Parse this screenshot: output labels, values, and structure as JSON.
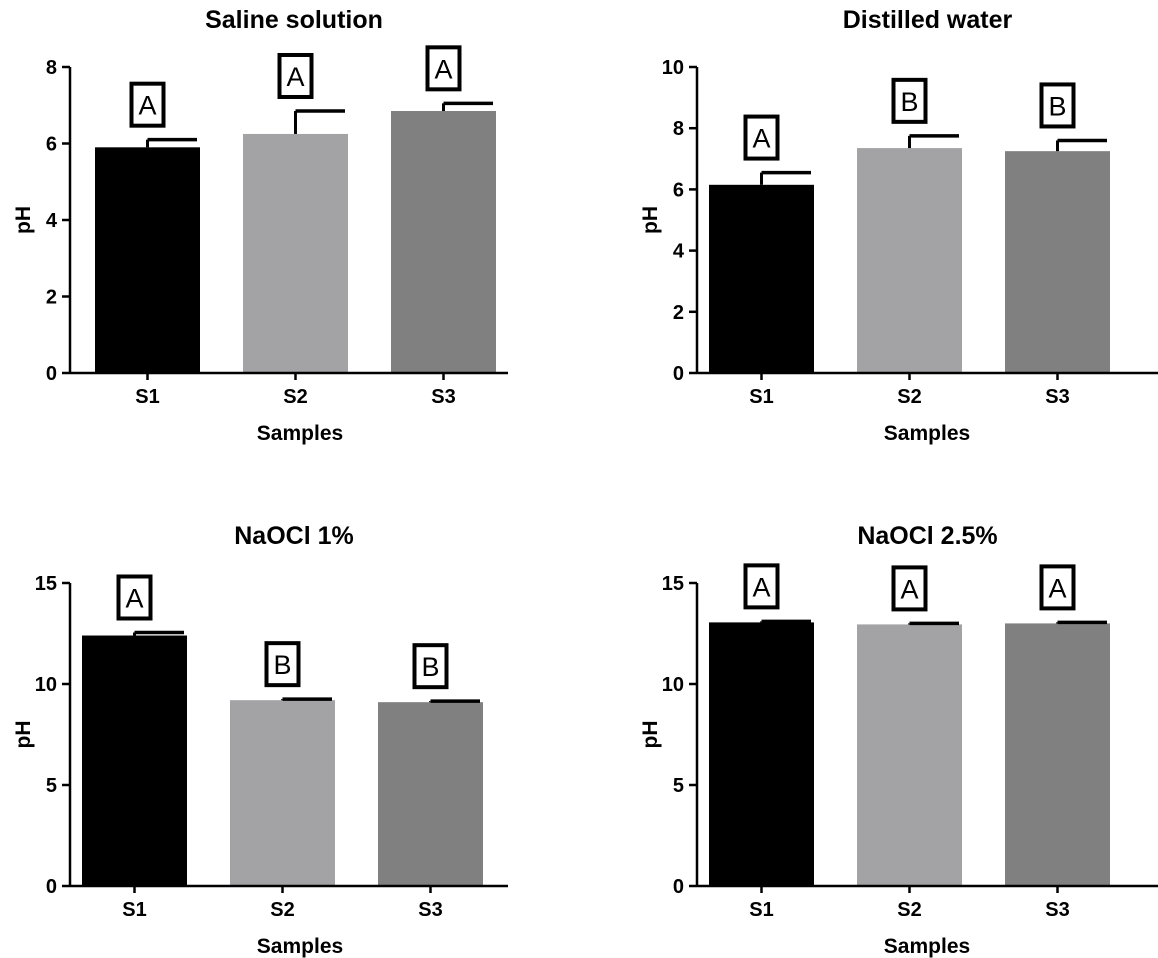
{
  "chart_data": [
    {
      "type": "bar",
      "title": "Saline solution",
      "xlabel": "Samples",
      "ylabel": "pH",
      "categories": [
        "S1",
        "S2",
        "S3"
      ],
      "values": [
        5.9,
        6.25,
        6.85
      ],
      "errors": [
        0.2,
        0.6,
        0.2
      ],
      "group_letters": [
        "A",
        "A",
        "A"
      ],
      "bar_colors": [
        "#000000",
        "#a3a3a6",
        "#808080"
      ],
      "ylim": [
        0,
        8
      ],
      "yticks": [
        0,
        2,
        4,
        6,
        8
      ]
    },
    {
      "type": "bar",
      "title": "Distilled water",
      "xlabel": "Samples",
      "ylabel": "pH",
      "categories": [
        "S1",
        "S2",
        "S3"
      ],
      "values": [
        6.15,
        7.35,
        7.25
      ],
      "errors": [
        0.4,
        0.4,
        0.35
      ],
      "group_letters": [
        "A",
        "B",
        "B"
      ],
      "bar_colors": [
        "#000000",
        "#a3a3a6",
        "#808080"
      ],
      "ylim": [
        0,
        10
      ],
      "yticks": [
        0,
        2,
        4,
        6,
        8,
        10
      ]
    },
    {
      "type": "bar",
      "title": "NaOCl 1%",
      "xlabel": "Samples",
      "ylabel": "pH",
      "categories": [
        "S1",
        "S2",
        "S3"
      ],
      "values": [
        12.4,
        9.2,
        9.1
      ],
      "errors": [
        0.15,
        0.05,
        0.05
      ],
      "group_letters": [
        "A",
        "B",
        "B"
      ],
      "bar_colors": [
        "#000000",
        "#a3a3a6",
        "#808080"
      ],
      "ylim": [
        0,
        15
      ],
      "yticks": [
        0,
        5,
        10,
        15
      ]
    },
    {
      "type": "bar",
      "title": "NaOCl 2.5%",
      "xlabel": "Samples",
      "ylabel": "pH",
      "categories": [
        "S1",
        "S2",
        "S3"
      ],
      "values": [
        13.05,
        12.95,
        13.0
      ],
      "errors": [
        0.05,
        0.05,
        0.05
      ],
      "group_letters": [
        "A",
        "A",
        "A"
      ],
      "bar_colors": [
        "#000000",
        "#a3a3a6",
        "#808080"
      ],
      "ylim": [
        0,
        15
      ],
      "yticks": [
        0,
        5,
        10,
        15
      ]
    }
  ]
}
